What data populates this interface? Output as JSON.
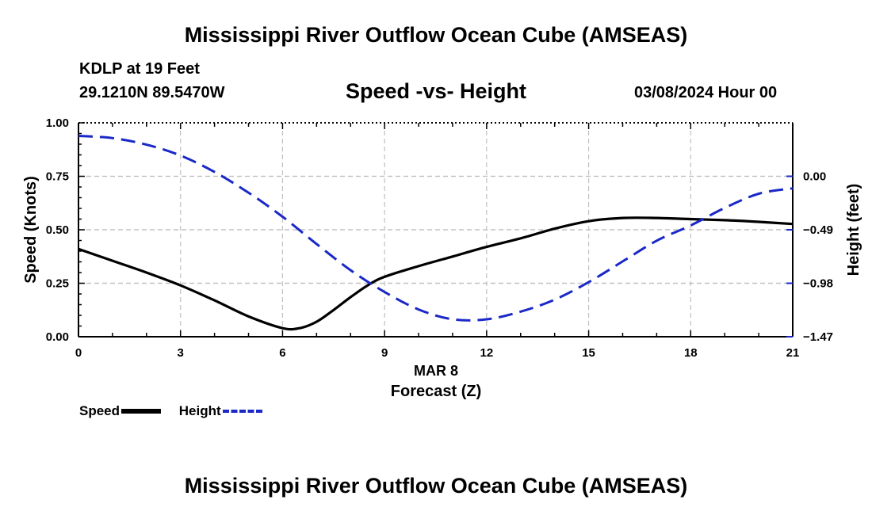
{
  "header": {
    "title": "Mississippi River Outflow Ocean Cube (AMSEAS)",
    "station": "KDLP at 19 Feet",
    "coords": "29.1210N  89.5470W",
    "subtitle": "Speed -vs- Height",
    "datetime": "03/08/2024 Hour 00"
  },
  "footer": {
    "title": "Mississippi River Outflow Ocean Cube (AMSEAS)"
  },
  "chart_data": {
    "type": "line",
    "title": "Speed -vs- Height",
    "xlabel": "Forecast (Z)",
    "xsublabel": "MAR 8",
    "ylabel": "Speed (Knots)",
    "y2label": "Height (feet)",
    "xlim": [
      0,
      21
    ],
    "ylim": [
      0,
      1
    ],
    "y2lim": [
      -1.47,
      0.49
    ],
    "x_ticks": [
      0,
      3,
      6,
      9,
      12,
      15,
      18,
      21
    ],
    "x_tick_labels": [
      "0",
      "3",
      "6",
      "9",
      "12",
      "15",
      "18",
      "21"
    ],
    "y_ticks": [
      0,
      0.25,
      0.5,
      0.75,
      1.0
    ],
    "y_tick_labels": [
      "0.00",
      "0.25",
      "0.50",
      "0.75",
      "1.00"
    ],
    "y2_ticks": [
      -1.47,
      -0.98,
      -0.49,
      0.0
    ],
    "y2_tick_labels": [
      "−1.47",
      "−0.98",
      "−0.49",
      "0.00"
    ],
    "grid": true,
    "legend_position": "bottom-left",
    "series": [
      {
        "name": "Speed",
        "axis": "left",
        "color": "#000000",
        "style": "solid",
        "x": [
          0,
          1,
          2,
          3,
          4,
          5,
          6,
          6.5,
          7,
          7.5,
          8,
          8.5,
          9,
          10,
          11,
          12,
          13,
          14,
          15,
          16,
          17,
          18,
          19,
          20,
          21
        ],
        "values": [
          0.41,
          0.355,
          0.3,
          0.24,
          0.17,
          0.095,
          0.04,
          0.04,
          0.07,
          0.125,
          0.185,
          0.24,
          0.28,
          0.33,
          0.375,
          0.42,
          0.46,
          0.505,
          0.54,
          0.555,
          0.555,
          0.55,
          0.545,
          0.537,
          0.527
        ]
      },
      {
        "name": "Height",
        "axis": "right",
        "color": "#1a28c8",
        "style": "dashed",
        "x": [
          0,
          1,
          2,
          3,
          4,
          5,
          6,
          7,
          8,
          9,
          10,
          11,
          12,
          13,
          14,
          15,
          16,
          17,
          18,
          19,
          20,
          21
        ],
        "values": [
          0.37,
          0.35,
          0.29,
          0.19,
          0.04,
          -0.15,
          -0.37,
          -0.62,
          -0.86,
          -1.06,
          -1.22,
          -1.31,
          -1.31,
          -1.24,
          -1.13,
          -0.97,
          -0.78,
          -0.59,
          -0.45,
          -0.29,
          -0.16,
          -0.11
        ]
      }
    ]
  }
}
